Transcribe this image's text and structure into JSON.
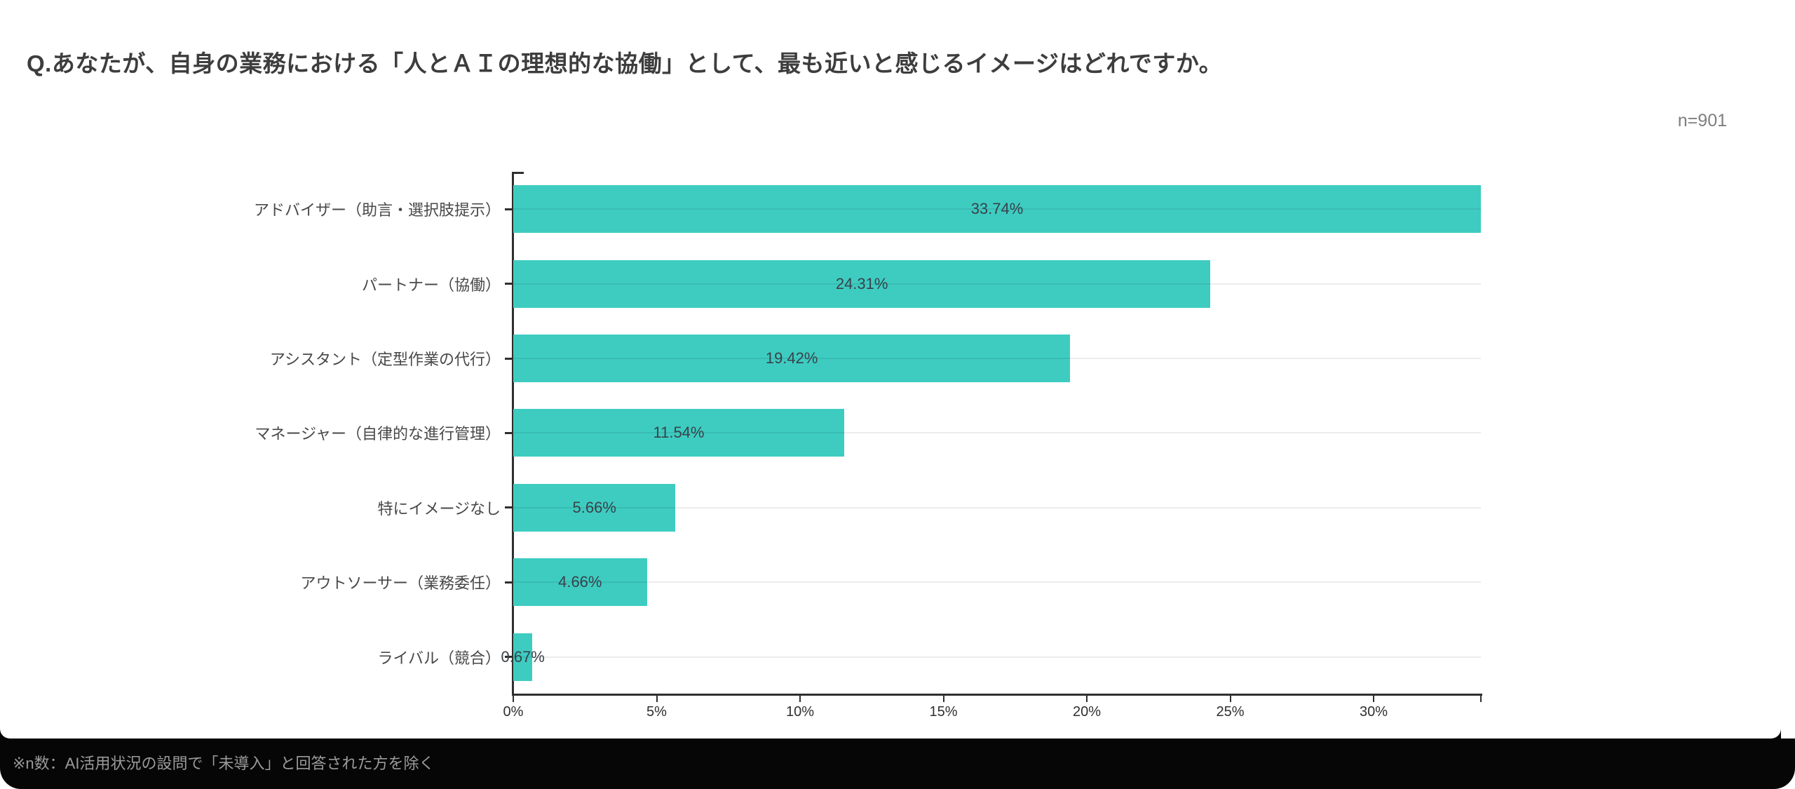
{
  "card": {
    "n_label": "n=901",
    "footnote": "※n数：AI活用状況の設問で「未導入」と回答された方を除く"
  },
  "colors": {
    "bar": "#3eccc1",
    "axis": "#2f2f2f",
    "value_label": "#39424a",
    "footer_bg": "#060606",
    "footnote_text": "#9b9b9b"
  },
  "chart_data": {
    "type": "bar",
    "orientation": "horizontal",
    "title": "Q.あなたが、自身の業務における「人とＡＩの理想的な協働」として、最も近いと感じるイメージはどれですか。",
    "sample_size_label": "n=901",
    "categories": [
      "アドバイザー（助言・選択肢提示）",
      "パートナー（協働）",
      "アシスタント（定型作業の代行）",
      "マネージャー（自律的な進行管理）",
      "特にイメージなし",
      "アウトソーサー（業務委任）",
      "ライバル（競合）"
    ],
    "values": [
      33.74,
      24.31,
      19.42,
      11.54,
      5.66,
      4.66,
      0.67
    ],
    "value_labels": [
      "33.74%",
      "24.31%",
      "19.42%",
      "11.54%",
      "5.66%",
      "4.66%",
      "0.67%"
    ],
    "xlim": [
      0,
      33.74
    ],
    "x_ticks": [
      {
        "v": 0,
        "label": "0%"
      },
      {
        "v": 5,
        "label": "5%"
      },
      {
        "v": 10,
        "label": "10%"
      },
      {
        "v": 15,
        "label": "15%"
      },
      {
        "v": 20,
        "label": "20%"
      },
      {
        "v": 25,
        "label": "25%"
      },
      {
        "v": 30,
        "label": "30%"
      },
      {
        "v": 33.74,
        "label": ""
      }
    ],
    "grid": "horizontal-per-category",
    "legend": "none",
    "ylabel": "",
    "xlabel": ""
  }
}
